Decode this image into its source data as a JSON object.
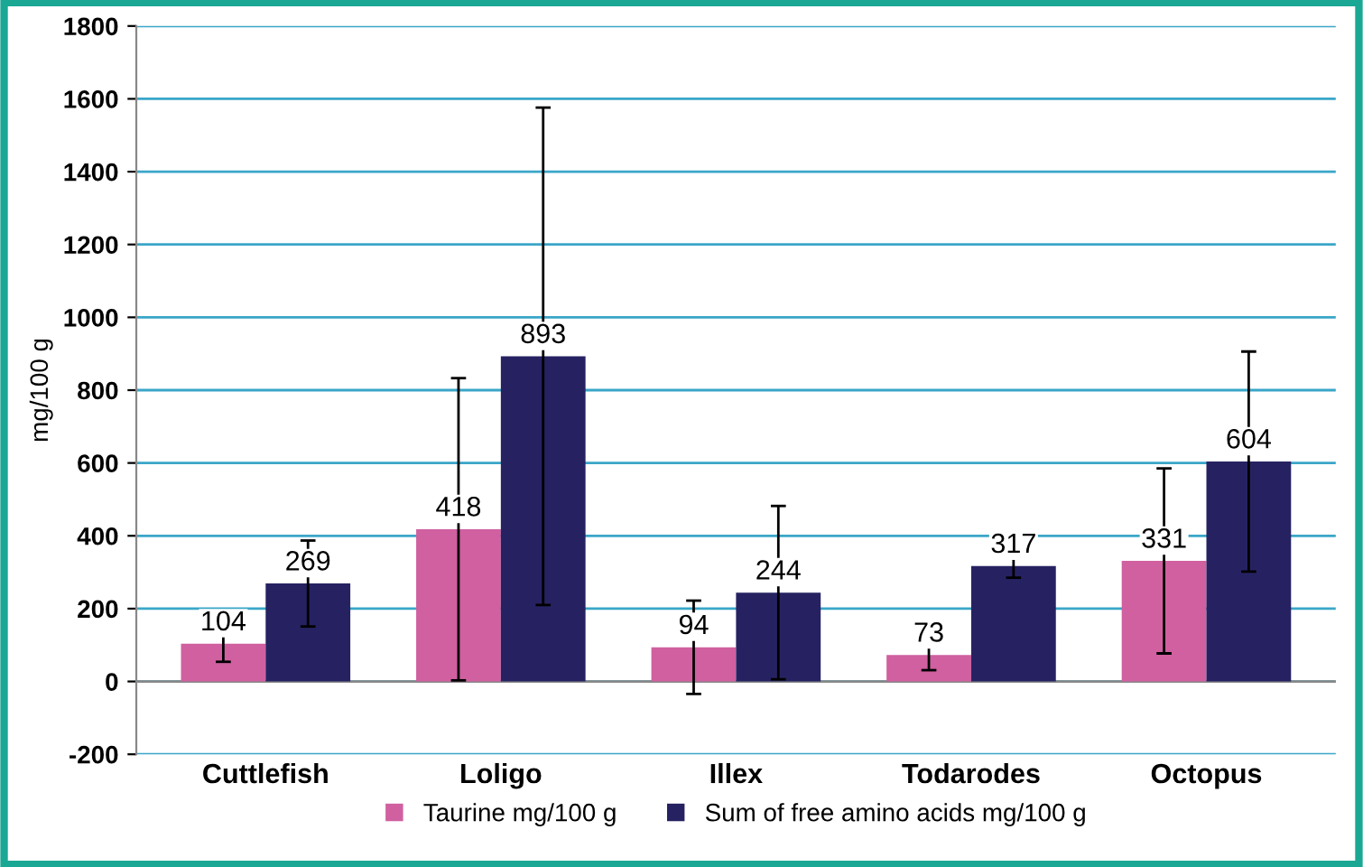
{
  "chart_data": {
    "type": "bar",
    "ylabel": "mg/100 g",
    "categories": [
      "Cuttlefish",
      "Loligo",
      "Illex",
      "Todarodes",
      "Octopus"
    ],
    "series": [
      {
        "name": "Taurine mg/100 g",
        "color": "#d060a0",
        "values": [
          104,
          418,
          94,
          73,
          331
        ],
        "errors": [
          50,
          415,
          128,
          42,
          254
        ]
      },
      {
        "name": "Sum of free amino acids mg/100 g",
        "color": "#262262",
        "values": [
          269,
          893,
          244,
          317,
          604
        ],
        "errors": [
          118,
          683,
          238,
          32,
          302
        ]
      }
    ],
    "ylim": [
      -200,
      1800
    ],
    "yticks": [
      -200,
      0,
      200,
      400,
      600,
      800,
      1000,
      1200,
      1400,
      1600,
      1800
    ],
    "grid": "y",
    "legend": "bottom",
    "data_labels": true
  }
}
